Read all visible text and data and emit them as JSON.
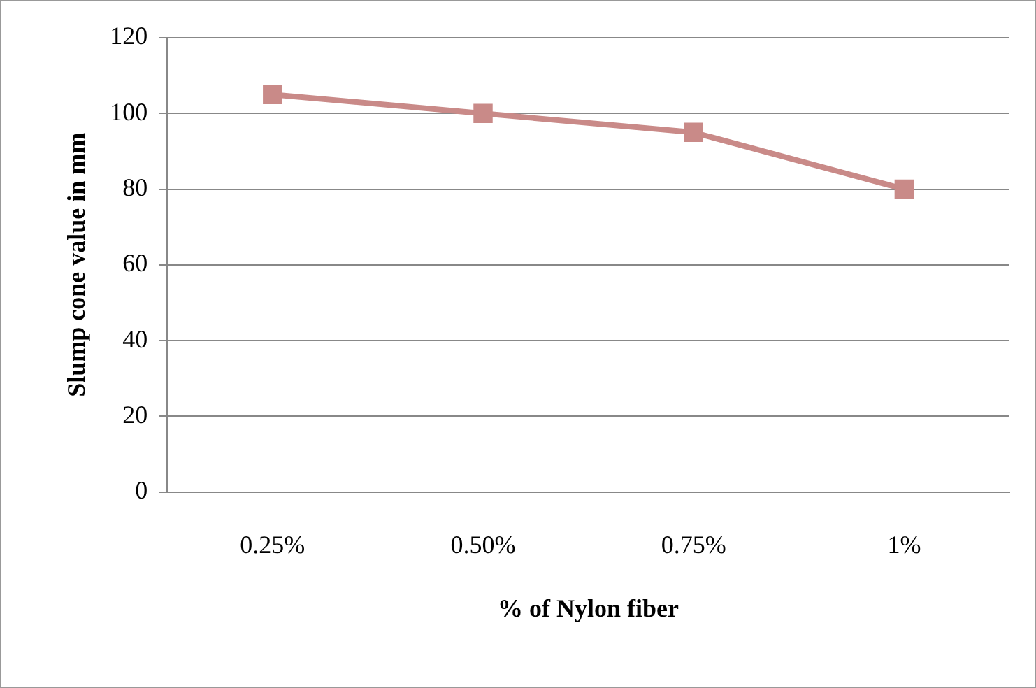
{
  "chart_data": {
    "type": "line",
    "xlabel": "% of Nylon fiber",
    "ylabel": "Slump cone value in mm",
    "categories": [
      "0.25%",
      "0.50%",
      "0.75%",
      "1%"
    ],
    "series": [
      {
        "color": "#c98a88",
        "values": [
          105,
          100,
          95,
          80
        ]
      }
    ],
    "ylim": [
      0,
      120
    ],
    "yticks": [
      0,
      20,
      40,
      60,
      80,
      100,
      120
    ],
    "grid": "y",
    "legend": false,
    "marker": "square",
    "line_style": "solid"
  }
}
